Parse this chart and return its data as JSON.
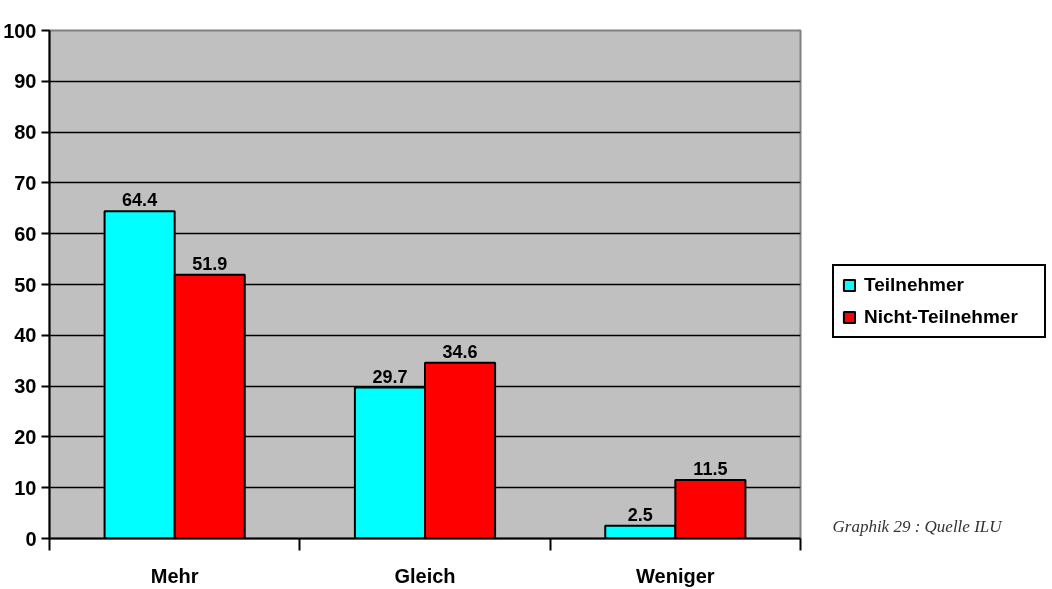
{
  "chart_data": {
    "type": "bar",
    "categories": [
      "Mehr",
      "Gleich",
      "Weniger"
    ],
    "series": [
      {
        "name": "Teilnehmer",
        "color": "#00ffff",
        "values": [
          64.4,
          29.7,
          2.5
        ]
      },
      {
        "name": "Nicht-Teilnehmer",
        "color": "#ff0000",
        "values": [
          51.9,
          34.6,
          11.5
        ]
      }
    ],
    "ylim": [
      0,
      100
    ],
    "yticks": [
      0,
      10,
      20,
      30,
      40,
      50,
      60,
      70,
      80,
      90,
      100
    ],
    "grid": "y",
    "legend": "right",
    "data_labels": true,
    "annotations": [
      "Graphik 29 : Quelle ILU"
    ]
  }
}
